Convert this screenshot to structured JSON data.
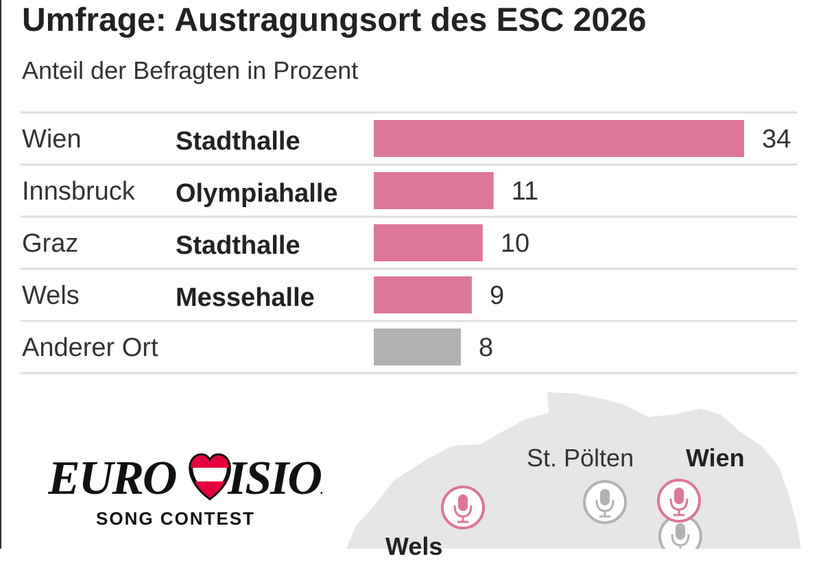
{
  "header": {
    "title": "Umfrage: Austragungsort des ESC 2026",
    "subtitle": "Anteil der Befragten in Prozent"
  },
  "chart_data": {
    "type": "bar",
    "orientation": "horizontal",
    "categories": [
      "Wien",
      "Innsbruck",
      "Graz",
      "Wels",
      "Anderer Ort"
    ],
    "venues": [
      "Stadthalle",
      "Olympiahalle",
      "Stadthalle",
      "Messehalle",
      ""
    ],
    "values": [
      34,
      11,
      10,
      9,
      8
    ],
    "colors": [
      "#dc7699",
      "#dc7699",
      "#dc7699",
      "#dc7699",
      "#b2b2b2"
    ],
    "title": "Umfrage: Austragungsort des ESC 2026",
    "subtitle": "Anteil der Befragten in Prozent",
    "unit": "Prozent",
    "grid": false
  },
  "logo": {
    "wordmark": "EUROVISION",
    "tagline": "SONG CONTEST"
  },
  "map": {
    "labels": [
      "St. Pölten",
      "Wien",
      "Wels"
    ],
    "colors": {
      "land": "#e6e6e6",
      "highlight": "#dc7699",
      "neutral": "#b2b2b2"
    }
  }
}
